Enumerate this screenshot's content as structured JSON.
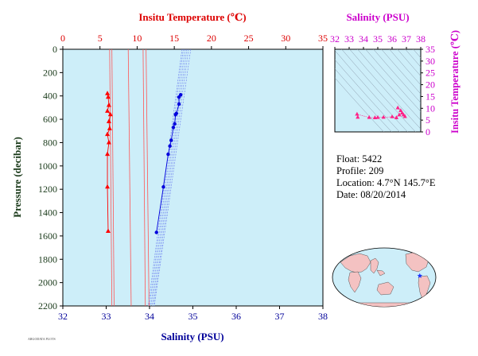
{
  "chart_data": [
    {
      "type": "scatter",
      "axes": {
        "top_label": "Insitu Temperature (℃)",
        "top_ticks": [
          0,
          5,
          10,
          15,
          20,
          25,
          30,
          35
        ],
        "top_range": [
          0,
          35
        ],
        "top_color": "#dd0000",
        "bottom_label": "Salinity (PSU)",
        "bottom_ticks": [
          32,
          33,
          34,
          35,
          36,
          37,
          38
        ],
        "bottom_range": [
          32,
          38
        ],
        "bottom_color": "#000099",
        "left_label": "Pressure (decibar)",
        "left_ticks": [
          0,
          200,
          400,
          600,
          800,
          1000,
          1200,
          1400,
          1600,
          1800,
          2000,
          2200
        ],
        "left_range": [
          0,
          2200
        ],
        "left_color": "#1a3a1a",
        "background": "#cdeef9"
      },
      "temperature_vs_pressure": {
        "color": "#ff0000",
        "points": [
          [
            6.0,
            380
          ],
          [
            6.1,
            410
          ],
          [
            6.2,
            480
          ],
          [
            6.0,
            530
          ],
          [
            6.4,
            560
          ],
          [
            6.2,
            620
          ],
          [
            6.3,
            680
          ],
          [
            6.0,
            730
          ],
          [
            6.2,
            800
          ],
          [
            6.0,
            900
          ],
          [
            6.0,
            1180
          ],
          [
            6.1,
            1560
          ]
        ]
      },
      "salinity_vs_pressure": {
        "color": "#0000dd",
        "points": [
          [
            34.72,
            390
          ],
          [
            34.68,
            410
          ],
          [
            34.68,
            470
          ],
          [
            34.62,
            550
          ],
          [
            34.6,
            560
          ],
          [
            34.58,
            640
          ],
          [
            34.55,
            670
          ],
          [
            34.5,
            780
          ],
          [
            34.47,
            830
          ],
          [
            34.43,
            900
          ],
          [
            34.32,
            1180
          ],
          [
            34.16,
            1570
          ]
        ]
      },
      "temperature_reference_lines": [
        [
          6.3,
          6.6
        ],
        [
          6.6,
          6.9
        ],
        [
          8.8,
          9.2
        ],
        [
          10.8,
          11.1
        ],
        [
          11.2,
          11.6
        ]
      ],
      "salinity_reference_lines": [
        [
          34.75,
          33.97
        ],
        [
          34.78,
          34.0
        ],
        [
          34.82,
          34.03
        ],
        [
          34.86,
          34.06
        ],
        [
          34.9,
          34.09
        ],
        [
          34.95,
          34.11
        ]
      ]
    },
    {
      "type": "scatter",
      "axes": {
        "top_label": "Salinity (PSU)",
        "top_ticks": [
          32,
          33,
          34,
          35,
          36,
          37,
          38
        ],
        "top_range": [
          32,
          38
        ],
        "right_label": "Insitu Temperature (℃)",
        "right_ticks": [
          0,
          5,
          10,
          15,
          20,
          25,
          30,
          35
        ],
        "right_range": [
          0,
          35
        ],
        "color": "#cc00cc",
        "background": "#cdeef9"
      },
      "ts_points": {
        "color": "#ff2288",
        "points": [
          [
            33.6,
            6.2
          ],
          [
            33.55,
            7.5
          ],
          [
            34.4,
            6.1
          ],
          [
            34.8,
            6.0
          ],
          [
            35.0,
            6.1
          ],
          [
            35.4,
            6.2
          ],
          [
            36.0,
            6.4
          ],
          [
            36.3,
            6.0
          ],
          [
            36.5,
            7.2
          ],
          [
            36.7,
            8.0
          ],
          [
            36.8,
            7.2
          ],
          [
            36.6,
            9.0
          ],
          [
            36.4,
            10.2
          ],
          [
            36.9,
            6.5
          ]
        ]
      }
    }
  ],
  "info": {
    "float": "Float:  5422",
    "profile": "Profile:  209",
    "location": "Location:  4.7°N  145.7°E",
    "date": "Date:  08/20/2014"
  },
  "map": {
    "ocean_color": "#cdeef9",
    "land_color": "#f4c2c2",
    "marker_color": "#1a33ff",
    "marker_lon": 145.7,
    "marker_lat": 4.7
  },
  "footer": {
    "tiny_text": "ARGODATA PLOTS"
  }
}
